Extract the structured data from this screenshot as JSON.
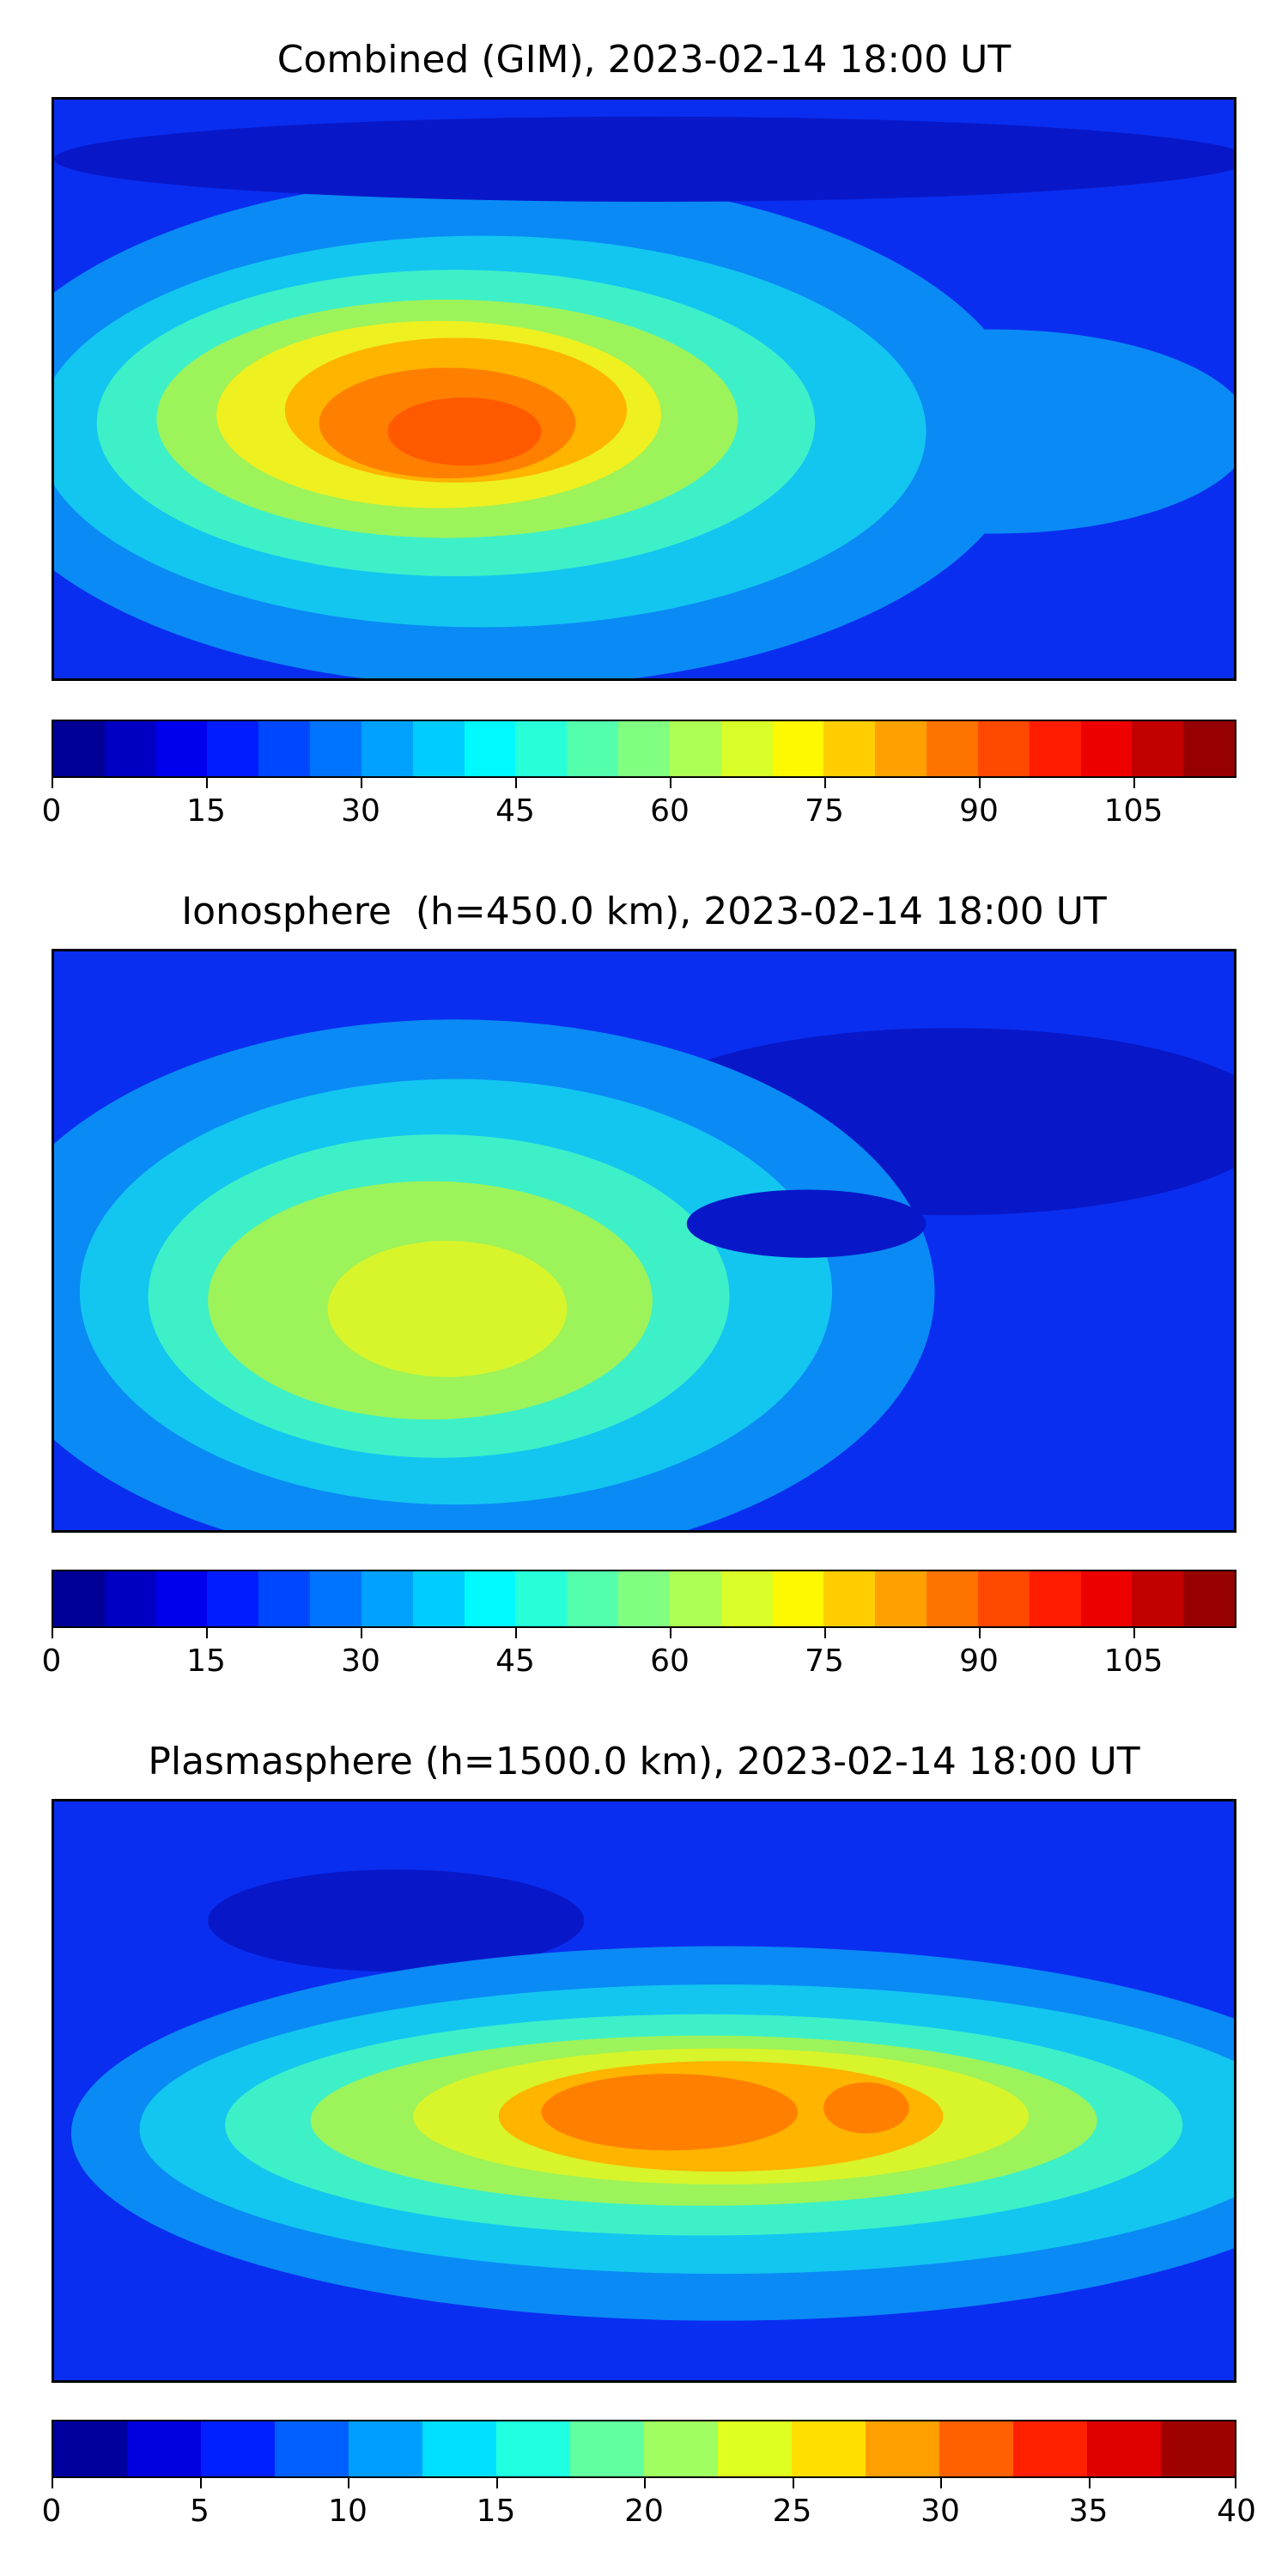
{
  "panels": [
    {
      "title": "Combined (GIM), 2023-02-14 18:00 UT",
      "colorbar": {
        "min": 0,
        "max": 115,
        "step": 5,
        "tick_labels": [
          "0",
          "15",
          "30",
          "45",
          "60",
          "75",
          "90",
          "105"
        ],
        "tick_values": [
          0,
          15,
          30,
          45,
          60,
          75,
          90,
          105
        ]
      }
    },
    {
      "title": "Ionosphere  (h=450.0 km), 2023-02-14 18:00 UT",
      "colorbar": {
        "min": 0,
        "max": 115,
        "step": 5,
        "tick_labels": [
          "0",
          "15",
          "30",
          "45",
          "60",
          "75",
          "90",
          "105"
        ],
        "tick_values": [
          0,
          15,
          30,
          45,
          60,
          75,
          90,
          105
        ]
      }
    },
    {
      "title": "Plasmasphere (h=1500.0 km), 2023-02-14 18:00 UT",
      "colorbar": {
        "min": 0,
        "max": 40,
        "step": 2.5,
        "tick_labels": [
          "0",
          "5",
          "10",
          "15",
          "20",
          "25",
          "30",
          "35",
          "40"
        ],
        "tick_values": [
          0,
          5,
          10,
          15,
          20,
          25,
          30,
          35,
          40
        ]
      }
    }
  ],
  "colormap": "jet"
}
